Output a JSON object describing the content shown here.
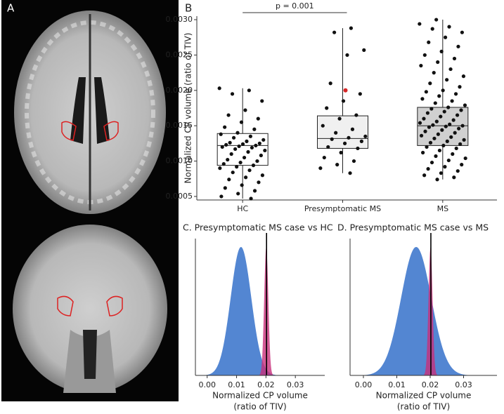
{
  "image_panel": {
    "label": "A"
  },
  "chart_data": [
    {
      "type": "box",
      "panel_label": "B",
      "ylabel": "Normalized CP volume (ratio of TIV)",
      "categories": [
        "HC",
        "Presymptomatic MS",
        "MS"
      ],
      "ylim": [
        0.00045,
        0.00305
      ],
      "yticks": [
        {
          "value": 0.0005,
          "label": "0.0005"
        },
        {
          "value": 0.001,
          "label": "0.0010"
        },
        {
          "value": 0.0015,
          "label": "0.0015"
        },
        {
          "value": 0.002,
          "label": "0.0020"
        },
        {
          "value": 0.0025,
          "label": "0.0025"
        },
        {
          "value": 0.003,
          "label": "0.0030"
        }
      ],
      "box_colors": [
        "#ffffff",
        "#f0f0f0",
        "#d0d0d0"
      ],
      "boxes": [
        {
          "whisker_low": 0.00047,
          "q1": 0.00094,
          "median": 0.00122,
          "q3": 0.00139,
          "whisker_high": 0.00203
        },
        {
          "whisker_low": 0.00083,
          "q1": 0.00118,
          "median": 0.00132,
          "q3": 0.00164,
          "whisker_high": 0.00288
        },
        {
          "whisker_low": 0.00074,
          "q1": 0.00122,
          "median": 0.0015,
          "q3": 0.00176,
          "whisker_high": 0.003
        }
      ],
      "point_color": "#111111",
      "points": [
        [
          0.00203,
          0.002,
          0.00195,
          0.00185,
          0.00172,
          0.00165,
          0.0016,
          0.00155,
          0.00148,
          0.00145,
          0.0014,
          0.00138,
          0.00135,
          0.00133,
          0.0013,
          0.00128,
          0.00126,
          0.00125,
          0.00124,
          0.00123,
          0.00122,
          0.00121,
          0.0012,
          0.00119,
          0.00117,
          0.00115,
          0.00113,
          0.0011,
          0.00108,
          0.00105,
          0.00102,
          0.001,
          0.00098,
          0.00096,
          0.00094,
          0.00092,
          0.0009,
          0.00087,
          0.00084,
          0.0008,
          0.00077,
          0.00074,
          0.0007,
          0.00066,
          0.00062,
          0.00058,
          0.00054,
          0.0005,
          0.00047
        ],
        [
          0.00288,
          0.00282,
          0.00257,
          0.0025,
          0.0021,
          0.00195,
          0.00185,
          0.00175,
          0.00165,
          0.0016,
          0.0015,
          0.00145,
          0.0014,
          0.00135,
          0.00133,
          0.00131,
          0.00128,
          0.00125,
          0.0012,
          0.00118,
          0.00112,
          0.00105,
          0.001,
          0.00095,
          0.0009,
          0.00083
        ],
        [
          0.003,
          0.00294,
          0.0029,
          0.00287,
          0.00282,
          0.00275,
          0.00268,
          0.00262,
          0.00255,
          0.0025,
          0.00245,
          0.0024,
          0.00235,
          0.0023,
          0.00225,
          0.0022,
          0.00215,
          0.0021,
          0.00205,
          0.002,
          0.00198,
          0.00195,
          0.00192,
          0.00188,
          0.00185,
          0.00182,
          0.00179,
          0.00176,
          0.00174,
          0.00172,
          0.0017,
          0.00168,
          0.00165,
          0.00163,
          0.0016,
          0.00158,
          0.00156,
          0.00154,
          0.00152,
          0.00151,
          0.0015,
          0.00149,
          0.00148,
          0.00146,
          0.00144,
          0.00142,
          0.0014,
          0.00138,
          0.00136,
          0.00134,
          0.00132,
          0.0013,
          0.00128,
          0.00126,
          0.00124,
          0.00122,
          0.0012,
          0.00118,
          0.00115,
          0.00112,
          0.0011,
          0.00107,
          0.00104,
          0.00101,
          0.00098,
          0.00095,
          0.00092,
          0.00089,
          0.00086,
          0.00083,
          0.0008,
          0.00077,
          0.00074
        ]
      ],
      "highlight": {
        "values": [
          null,
          0.002,
          null
        ],
        "color": "#d62728"
      },
      "annotation": {
        "text": "p = 0.001",
        "from": 0,
        "to": 1
      }
    },
    {
      "type": "density",
      "title": "C. Presymptomatic MS case vs HC",
      "xlabel": [
        "Normalized CP volume",
        "(ratio of TIV)"
      ],
      "xlim": [
        -0.004,
        0.04
      ],
      "xticks": [
        {
          "value": 0,
          "label": "0.00"
        },
        0.01,
        0.02,
        0.03
      ],
      "series": [
        {
          "color": "#4a7fd0",
          "mean": 0.0115,
          "sd": 0.0035
        },
        {
          "color": "#c8307a",
          "mean": 0.0201,
          "sd": 0.0007
        }
      ],
      "case_value": 0.0202
    },
    {
      "type": "density",
      "title": "D. Presymptomatic MS case vs MS",
      "xlabel": [
        "Normalized CP volume",
        "(ratio of TIV)"
      ],
      "xlim": [
        -0.004,
        0.04
      ],
      "xticks": [
        {
          "value": 0,
          "label": "0.00"
        },
        0.01,
        0.02,
        0.03
      ],
      "series": [
        {
          "color": "#4a7fd0",
          "mean": 0.0158,
          "sd": 0.0045
        },
        {
          "color": "#c8307a",
          "mean": 0.0201,
          "sd": 0.0006
        }
      ],
      "case_value": 0.0202
    }
  ]
}
